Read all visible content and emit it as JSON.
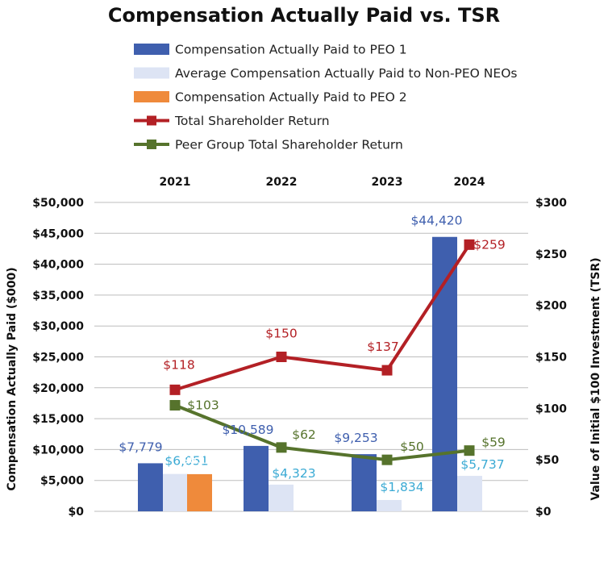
{
  "chart_data": {
    "type": "bar",
    "title": "Compensation Actually Paid vs. TSR",
    "categories": [
      "2021",
      "2022",
      "2023",
      "2024"
    ],
    "ylabel": "Compensation Actually Paid ($000)",
    "y2label": "Value of Initial $100 Investment (TSR)",
    "ylim": [
      0,
      50000
    ],
    "y2lim": [
      0,
      300
    ],
    "yticks": [
      "$0",
      "$5,000",
      "$10,000",
      "$15,000",
      "$20,000",
      "$25,000",
      "$30,000",
      "$35,000",
      "$40,000",
      "$45,000",
      "$50,000"
    ],
    "y2ticks": [
      "$0",
      "$50",
      "$100",
      "$150",
      "$200",
      "$250",
      "$300"
    ],
    "bar_series": [
      {
        "name": "Compensation Actually Paid to PEO 1",
        "color": "#3f5fae",
        "label_color": "#3f5fae",
        "values": [
          7779,
          10589,
          9253,
          44420
        ],
        "labels": [
          "$7,779",
          "$10,589",
          "$9,253",
          "$44,420"
        ]
      },
      {
        "name": "Average Compensation Actually Paid to Non-PEO NEOs",
        "color": "#dde4f4",
        "label_color": "#3aaad4",
        "values": [
          6051,
          4323,
          1834,
          5737
        ],
        "labels": [
          "$6,051",
          "$4,323",
          "$1,834",
          "$5,737"
        ]
      },
      {
        "name": "Compensation Actually Paid to PEO 2",
        "color": "#ef8a3b",
        "label_color": "#ffffff",
        "values": [
          6018,
          null,
          null,
          null
        ],
        "labels": [
          "$6,018",
          null,
          null,
          null
        ]
      }
    ],
    "line_series": [
      {
        "name": "Total Shareholder Return",
        "color": "#b32025",
        "label_color": "#b32025",
        "values": [
          118,
          150,
          137,
          259
        ],
        "labels": [
          "$118",
          "$150",
          "$137",
          "$259"
        ]
      },
      {
        "name": "Peer Group Total Shareholder Return",
        "color": "#56732c",
        "label_color": "#56732c",
        "values": [
          103,
          62,
          50,
          59
        ],
        "labels": [
          "$103",
          "$62",
          "$50",
          "$59"
        ]
      }
    ]
  }
}
